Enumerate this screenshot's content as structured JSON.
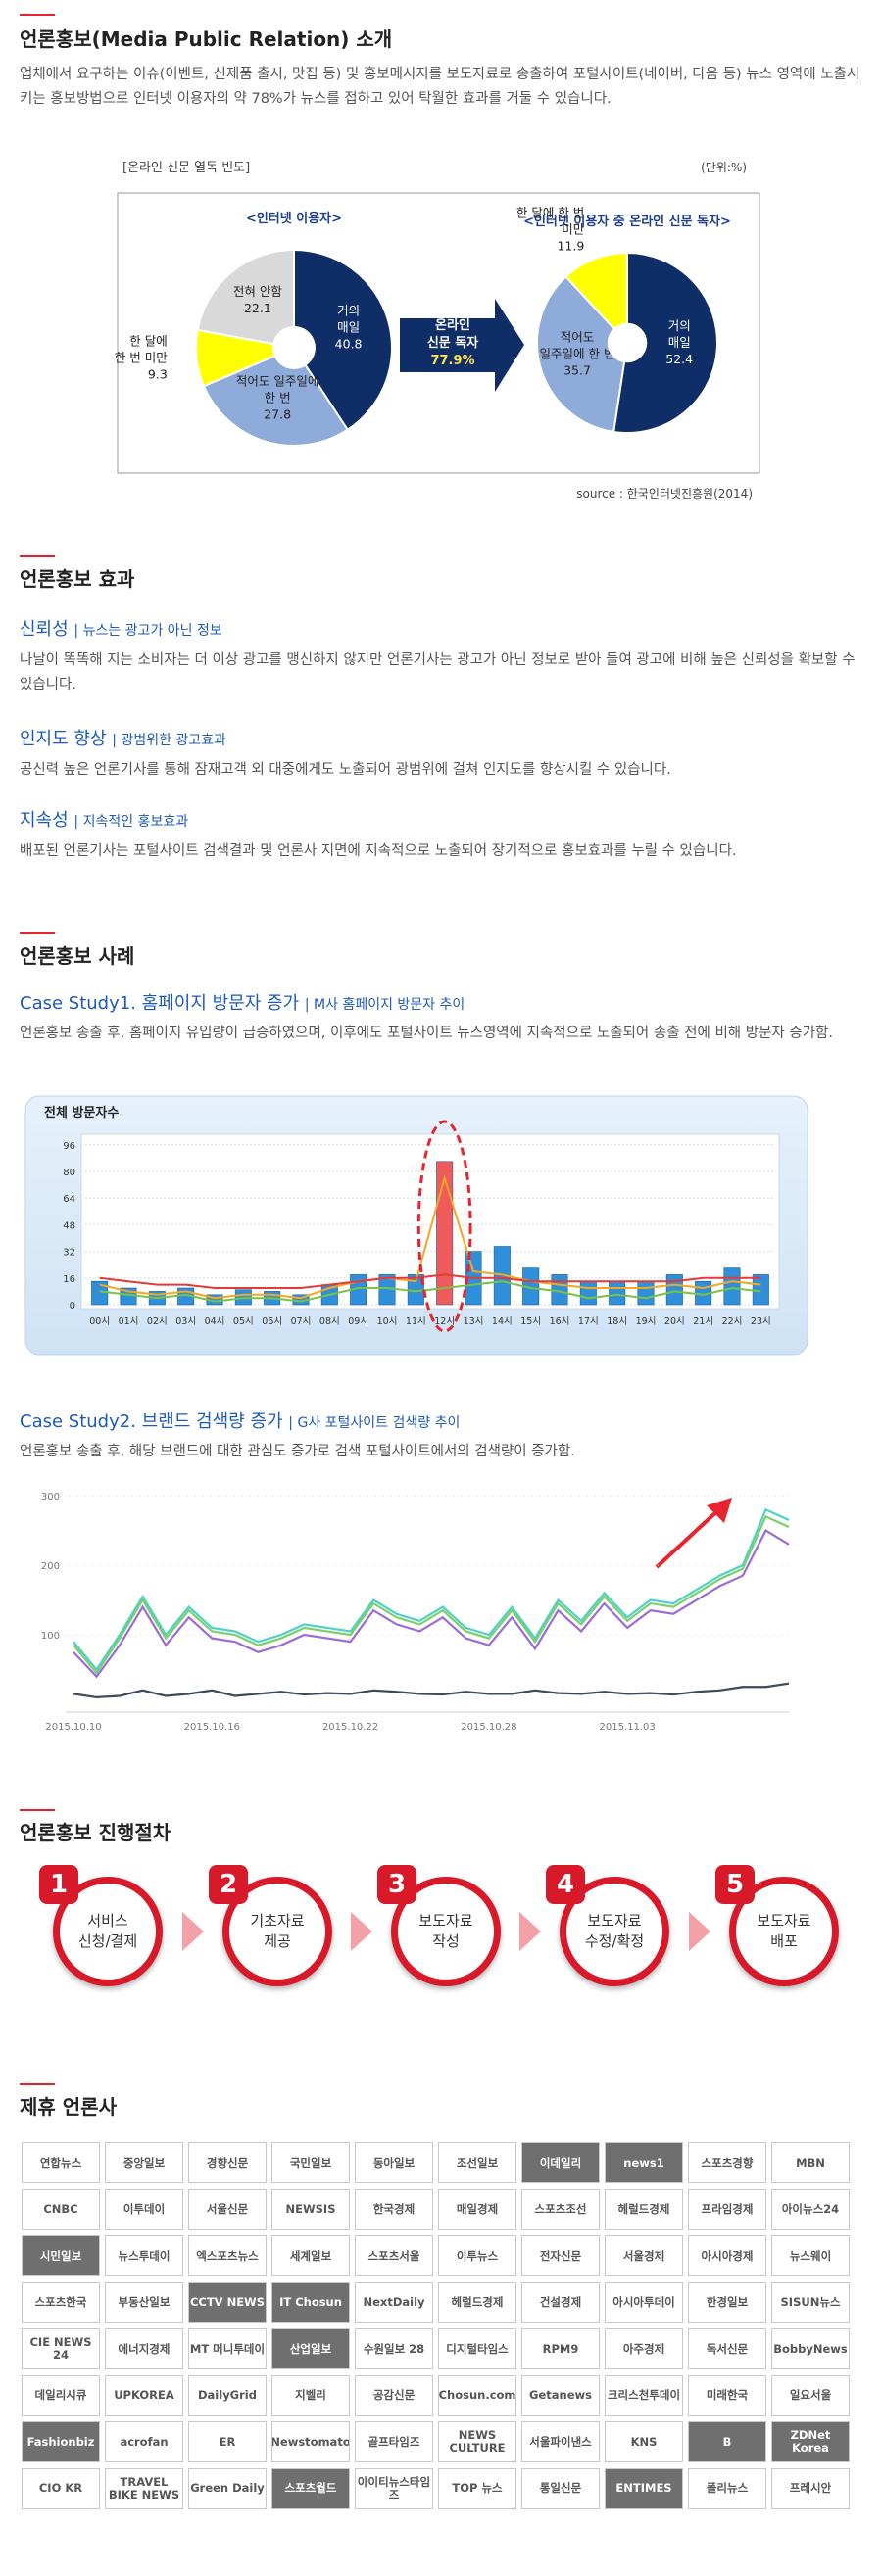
{
  "intro": {
    "title": "언론홍보(Media Public Relation) 소개",
    "text": "업체에서 요구하는 이슈(이벤트, 신제품 출시, 맛집 등) 및 홍보메시지를 보도자료로 송출하여 포털사이트(네이버, 다음 등) 뉴스 영역에 노출시키는 홍보방법으로 인터넷 이용자의 약 78%가 뉴스를 접하고 있어 탁월한 효과를 거둘 수 있습니다."
  },
  "figure": {
    "caption": "[온라인 신문 열독 빈도]",
    "unit": "(단위:%)",
    "arrow": [
      "온라인",
      "신문 독자",
      "77.9%"
    ],
    "source": "source : 한국인터넷진흥원(2014)"
  },
  "effects": {
    "title": "언론홍보 효과",
    "items": [
      {
        "title": "신뢰성",
        "subtitle": "| 뉴스는 광고가 아닌 정보",
        "text": "나날이 똑똑해 지는 소비자는 더 이상 광고를 맹신하지 않지만 언론기사는 광고가 아닌 정보로 받아 들여 광고에 비해 높은 신뢰성을 확보할 수 있습니다."
      },
      {
        "title": "인지도 향상",
        "subtitle": "| 광범위한 광고효과",
        "text": "공신력 높은 언론기사를 통해 잠재고객 외 대중에게도 노출되어 광범위에 걸쳐 인지도를 향상시킬 수 있습니다."
      },
      {
        "title": "지속성",
        "subtitle": "| 지속적인 홍보효과",
        "text": "배포된 언론기사는 포털사이트 검색결과 및 언론사 지면에 지속적으로 노출되어 장기적으로 홍보효과를 누릴 수 있습니다."
      }
    ]
  },
  "cases": {
    "title": "언론홍보 사례",
    "items": [
      {
        "title": "Case Study1. 홈페이지 방문자 증가",
        "subtitle": "| M사 홈페이지 방문자 추이",
        "text": "언론홍보 송출 후, 홈페이지 유입량이 급증하였으며, 이후에도 포털사이트 뉴스영역에 지속적으로 노출되어 송출 전에 비해 방문자 증가함."
      },
      {
        "title": "Case Study2. 브랜드 검색량 증가",
        "subtitle": "| G사 포털사이트 검색량 추이",
        "text": "언론홍보 송출 후, 해당 브랜드에 대한 관심도 증가로 검색 포털사이트에서의 검색량이 증가함."
      }
    ]
  },
  "process": {
    "title": "언론홍보 진행절차",
    "steps": [
      {
        "number": 1,
        "label": [
          "서비스",
          "신청/결제"
        ]
      },
      {
        "number": 2,
        "label": [
          "기초자료",
          "제공"
        ]
      },
      {
        "number": 3,
        "label": [
          "보도자료",
          "작성"
        ]
      },
      {
        "number": 4,
        "label": [
          "보도자료",
          "수정/확정"
        ]
      },
      {
        "number": 5,
        "label": [
          "보도자료",
          "배포"
        ]
      }
    ]
  },
  "partners": {
    "title": "제휴 언론사",
    "logos": [
      "연합뉴스",
      "중앙일보",
      "경향신문",
      "국민일보",
      "동아일보",
      "조선일보",
      "이데일리",
      "news1",
      "스포츠경향",
      "MBN",
      "CNBC",
      "이투데이",
      "서울신문",
      "NEWSIS",
      "한국경제",
      "매일경제",
      "스포츠조선",
      "헤럴드경제",
      "프라임경제",
      "아이뉴스24",
      "시민일보",
      "뉴스투데이",
      "엑스포츠뉴스",
      "세계일보",
      "스포츠서울",
      "이투뉴스",
      "전자신문",
      "서울경제",
      "아시아경제",
      "뉴스웨이",
      "스포츠한국",
      "부동산일보",
      "CCTV NEWS",
      "IT Chosun",
      "NextDaily",
      "헤럴드경제",
      "건설경제",
      "아시아투데이",
      "한경일보",
      "SISUN뉴스",
      "CIE NEWS 24",
      "에너지경제",
      "MT 머니투데이",
      "산업일보",
      "수원일보 28",
      "디지털타임스",
      "RPM9",
      "아주경제",
      "독서신문",
      "BobbyNews",
      "데일리시큐",
      "UPKOREA",
      "DailyGrid",
      "지벨리",
      "공감신문",
      "Chosun.com",
      "Getanews",
      "크리스천투데이",
      "미래한국",
      "일요서울",
      "Fashionbiz",
      "acrofan",
      "ER",
      "Newstomato",
      "골프타임즈",
      "NEWS CULTURE",
      "서울파이낸스",
      "KNS",
      "B",
      "ZDNet Korea",
      "CIO KR",
      "TRAVEL BIKE NEWS",
      "Green Daily",
      "스포츠월드",
      "아이티뉴스타임즈",
      "TOP 뉴스",
      "통일신문",
      "ENTIMES",
      "폴리뉴스",
      "프레시안"
    ]
  },
  "chart_data": [
    {
      "type": "donut",
      "title": "<인터넷 이용자>",
      "labels": [
        [
          "거의",
          "매일"
        ],
        [
          "적어도 일주일에",
          "한 번"
        ],
        [
          "한 달에",
          "한 번 미만"
        ],
        [
          "전혀 안함"
        ]
      ],
      "values": [
        40.8,
        27.8,
        9.3,
        22.1
      ],
      "colors": [
        "#0f2e67",
        "#8fabd9",
        "#ffff00",
        "#d9d9d9"
      ]
    },
    {
      "type": "donut",
      "title": "<인터넷 이용자 중 온라인 신문 독자>",
      "labels": [
        [
          "거의",
          "매일"
        ],
        [
          "적어도",
          "일주일에 한 번"
        ],
        [
          "한 달에 한 번",
          "미만"
        ]
      ],
      "values": [
        52.4,
        35.7,
        11.9
      ],
      "colors": [
        "#0f2e67",
        "#8fabd9",
        "#ffff00"
      ]
    },
    {
      "type": "bar",
      "title": "전체 방문자수",
      "categories": [
        "00시",
        "01시",
        "02시",
        "03시",
        "04시",
        "05시",
        "06시",
        "07시",
        "08시",
        "09시",
        "10시",
        "11시",
        "12시",
        "13시",
        "14시",
        "15시",
        "16시",
        "17시",
        "18시",
        "19시",
        "20시",
        "21시",
        "22시",
        "23시"
      ],
      "values": [
        14,
        10,
        8,
        10,
        6,
        9,
        8,
        6,
        12,
        18,
        18,
        18,
        86,
        32,
        35,
        22,
        18,
        14,
        14,
        14,
        18,
        14,
        22,
        18
      ],
      "colors": [
        "#2f8fd8",
        "#2f8fd8",
        "#2f8fd8",
        "#2f8fd8",
        "#2f8fd8",
        "#2f8fd8",
        "#2f8fd8",
        "#2f8fd8",
        "#2f8fd8",
        "#2f8fd8",
        "#2f8fd8",
        "#2f8fd8",
        "#ef5a5a",
        "#2f8fd8",
        "#2f8fd8",
        "#2f8fd8",
        "#2f8fd8",
        "#2f8fd8",
        "#2f8fd8",
        "#2f8fd8",
        "#2f8fd8",
        "#2f8fd8",
        "#2f8fd8",
        "#2f8fd8"
      ],
      "lines": [
        {
          "color": "#f5a623",
          "values": [
            12,
            8,
            6,
            8,
            4,
            6,
            6,
            4,
            10,
            14,
            16,
            14,
            76,
            20,
            18,
            14,
            12,
            10,
            10,
            10,
            12,
            10,
            14,
            12
          ]
        },
        {
          "color": "#7cc242",
          "values": [
            8,
            6,
            4,
            6,
            2,
            4,
            4,
            2,
            6,
            10,
            10,
            8,
            10,
            12,
            14,
            10,
            8,
            4,
            6,
            4,
            8,
            6,
            10,
            8
          ]
        },
        {
          "color": "#e53935",
          "values": [
            16,
            14,
            12,
            12,
            10,
            10,
            10,
            10,
            12,
            14,
            16,
            16,
            18,
            16,
            16,
            14,
            14,
            14,
            14,
            14,
            14,
            16,
            16,
            16
          ]
        }
      ],
      "ylim": [
        0,
        100
      ],
      "yticks": [
        0,
        16,
        32,
        48,
        64,
        80,
        96
      ],
      "grid": true
    },
    {
      "type": "line",
      "categories": [
        "2015.10.10",
        null,
        null,
        null,
        null,
        null,
        "2015.10.16",
        null,
        null,
        null,
        null,
        null,
        "2015.10.22",
        null,
        null,
        null,
        null,
        null,
        "2015.10.28",
        null,
        null,
        null,
        null,
        null,
        "2015.11.03",
        null,
        null,
        null,
        null,
        null,
        null,
        null
      ],
      "series": [
        {
          "color": "#4fd1c5",
          "values": [
            90,
            50,
            100,
            155,
            100,
            140,
            110,
            105,
            90,
            100,
            115,
            110,
            105,
            150,
            130,
            120,
            140,
            110,
            100,
            140,
            95,
            150,
            120,
            160,
            125,
            150,
            145,
            165,
            185,
            200,
            280,
            265
          ]
        },
        {
          "color": "#7ccf6e",
          "values": [
            85,
            45,
            95,
            150,
            95,
            135,
            105,
            100,
            85,
            95,
            110,
            105,
            100,
            145,
            125,
            115,
            135,
            105,
            95,
            135,
            90,
            145,
            115,
            155,
            120,
            145,
            140,
            160,
            180,
            195,
            270,
            255
          ]
        },
        {
          "color": "#9b6bd6",
          "values": [
            75,
            40,
            85,
            140,
            85,
            125,
            95,
            90,
            75,
            85,
            100,
            95,
            90,
            135,
            115,
            105,
            125,
            95,
            85,
            125,
            80,
            135,
            105,
            145,
            110,
            135,
            130,
            150,
            170,
            185,
            250,
            230
          ]
        },
        {
          "color": "#3c4a5c",
          "values": [
            15,
            10,
            12,
            20,
            12,
            15,
            20,
            12,
            15,
            18,
            14,
            16,
            15,
            20,
            18,
            15,
            14,
            18,
            15,
            15,
            20,
            16,
            15,
            18,
            15,
            16,
            14,
            18,
            20,
            25,
            25,
            30
          ]
        }
      ],
      "ylim": [
        0,
        310
      ],
      "yticks": [
        100,
        200,
        300
      ],
      "grid": true
    }
  ]
}
